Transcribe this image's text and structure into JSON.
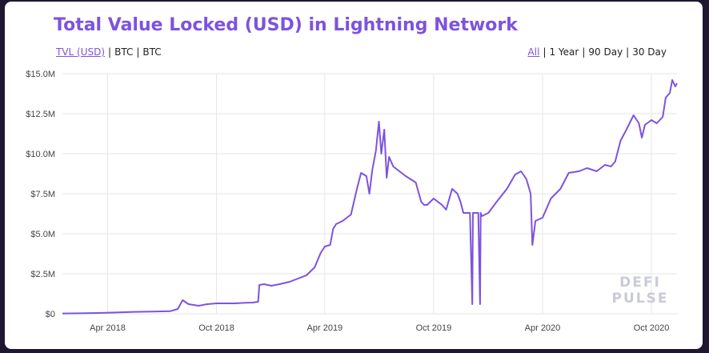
{
  "title": "Total Value Locked (USD) in Lightning Network",
  "unit_toggle": [
    {
      "label": "TVL (USD)",
      "active": true
    },
    {
      "label": "BTC",
      "active": false
    },
    {
      "label": "BTC",
      "active": false
    }
  ],
  "range_toggle": [
    {
      "label": "All",
      "active": true
    },
    {
      "label": "1 Year",
      "active": false
    },
    {
      "label": "90 Day",
      "active": false
    },
    {
      "label": "30 Day",
      "active": false
    }
  ],
  "watermark": [
    "DEFI",
    "PULSE"
  ],
  "colors": {
    "line": "#7d53de",
    "title": "#7d53de",
    "frame": "#1f1730",
    "grid": "#e6e6e6"
  },
  "chart_data": {
    "type": "line",
    "title": "Total Value Locked (USD) in Lightning Network",
    "xlabel": "",
    "ylabel": "",
    "x_ticks": [
      "Apr 2018",
      "Oct 2018",
      "Apr 2019",
      "Oct 2019",
      "Apr 2020",
      "Oct 2020"
    ],
    "y_ticks": [
      "$0",
      "$2.5M",
      "$5.0M",
      "$7.5M",
      "$10.0M",
      "$12.5M",
      "$15.0M"
    ],
    "ylim": [
      0,
      15000000
    ],
    "xlim": [
      "2018-01-15",
      "2020-11-13"
    ],
    "grid": true,
    "legend": "none",
    "series": [
      {
        "x": [
          "2018-01-15",
          "2018-02-15",
          "2018-03-15",
          "2018-04-15",
          "2018-05-15",
          "2018-06-15",
          "2018-07-01",
          "2018-07-15",
          "2018-07-28",
          "2018-08-05",
          "2018-08-15",
          "2018-09-01",
          "2018-09-15",
          "2018-10-01",
          "2018-10-15",
          "2018-11-01",
          "2018-11-15",
          "2018-12-01",
          "2018-12-10",
          "2018-12-12",
          "2018-12-20",
          "2019-01-01",
          "2019-01-15",
          "2019-02-01",
          "2019-02-15",
          "2019-03-01",
          "2019-03-15",
          "2019-03-25",
          "2019-04-01",
          "2019-04-10",
          "2019-04-15",
          "2019-04-20",
          "2019-05-01",
          "2019-05-15",
          "2019-05-25",
          "2019-06-01",
          "2019-06-10",
          "2019-06-15",
          "2019-06-20",
          "2019-06-26",
          "2019-07-01",
          "2019-07-05",
          "2019-07-10",
          "2019-07-14",
          "2019-07-18",
          "2019-07-25",
          "2019-08-01",
          "2019-08-15",
          "2019-09-01",
          "2019-09-10",
          "2019-09-15",
          "2019-09-20",
          "2019-10-01",
          "2019-10-15",
          "2019-10-22",
          "2019-11-01",
          "2019-11-10",
          "2019-11-15",
          "2019-11-20",
          "2019-12-01",
          "2019-12-05",
          "2019-12-06",
          "2019-12-08",
          "2019-12-15",
          "2019-12-18",
          "2019-12-19",
          "2019-12-21",
          "2020-01-01",
          "2020-01-15",
          "2020-02-01",
          "2020-02-15",
          "2020-02-25",
          "2020-03-05",
          "2020-03-12",
          "2020-03-15",
          "2020-03-20",
          "2020-04-01",
          "2020-04-15",
          "2020-05-01",
          "2020-05-15",
          "2020-06-01",
          "2020-06-15",
          "2020-07-01",
          "2020-07-15",
          "2020-07-25",
          "2020-08-01",
          "2020-08-10",
          "2020-08-20",
          "2020-09-01",
          "2020-09-10",
          "2020-09-15",
          "2020-09-20",
          "2020-10-01",
          "2020-10-10",
          "2020-10-20",
          "2020-10-25",
          "2020-11-01",
          "2020-11-05",
          "2020-11-10",
          "2020-11-13"
        ],
        "values": [
          0.02,
          0.03,
          0.05,
          0.08,
          0.12,
          0.14,
          0.15,
          0.16,
          0.3,
          0.85,
          0.6,
          0.5,
          0.6,
          0.65,
          0.65,
          0.65,
          0.68,
          0.7,
          0.75,
          1.8,
          1.85,
          1.75,
          1.85,
          2.0,
          2.2,
          2.4,
          2.9,
          3.8,
          4.2,
          4.3,
          5.3,
          5.6,
          5.8,
          6.2,
          7.8,
          8.8,
          8.6,
          7.5,
          9.0,
          10.2,
          12.0,
          10.0,
          11.5,
          8.5,
          9.8,
          9.2,
          9.0,
          8.6,
          8.2,
          7.0,
          6.8,
          6.8,
          7.2,
          6.8,
          6.5,
          7.8,
          7.5,
          7.0,
          6.3,
          6.3,
          0.6,
          6.3,
          6.3,
          6.3,
          0.6,
          6.3,
          6.1,
          6.3,
          7.0,
          7.8,
          8.7,
          8.9,
          8.4,
          7.5,
          4.3,
          5.8,
          6.0,
          7.2,
          7.8,
          8.8,
          8.9,
          9.1,
          8.9,
          9.3,
          9.2,
          9.5,
          10.8,
          11.5,
          12.4,
          11.9,
          11.0,
          11.8,
          12.1,
          11.9,
          12.3,
          13.5,
          13.8,
          14.6,
          14.2,
          14.4
        ]
      }
    ]
  }
}
